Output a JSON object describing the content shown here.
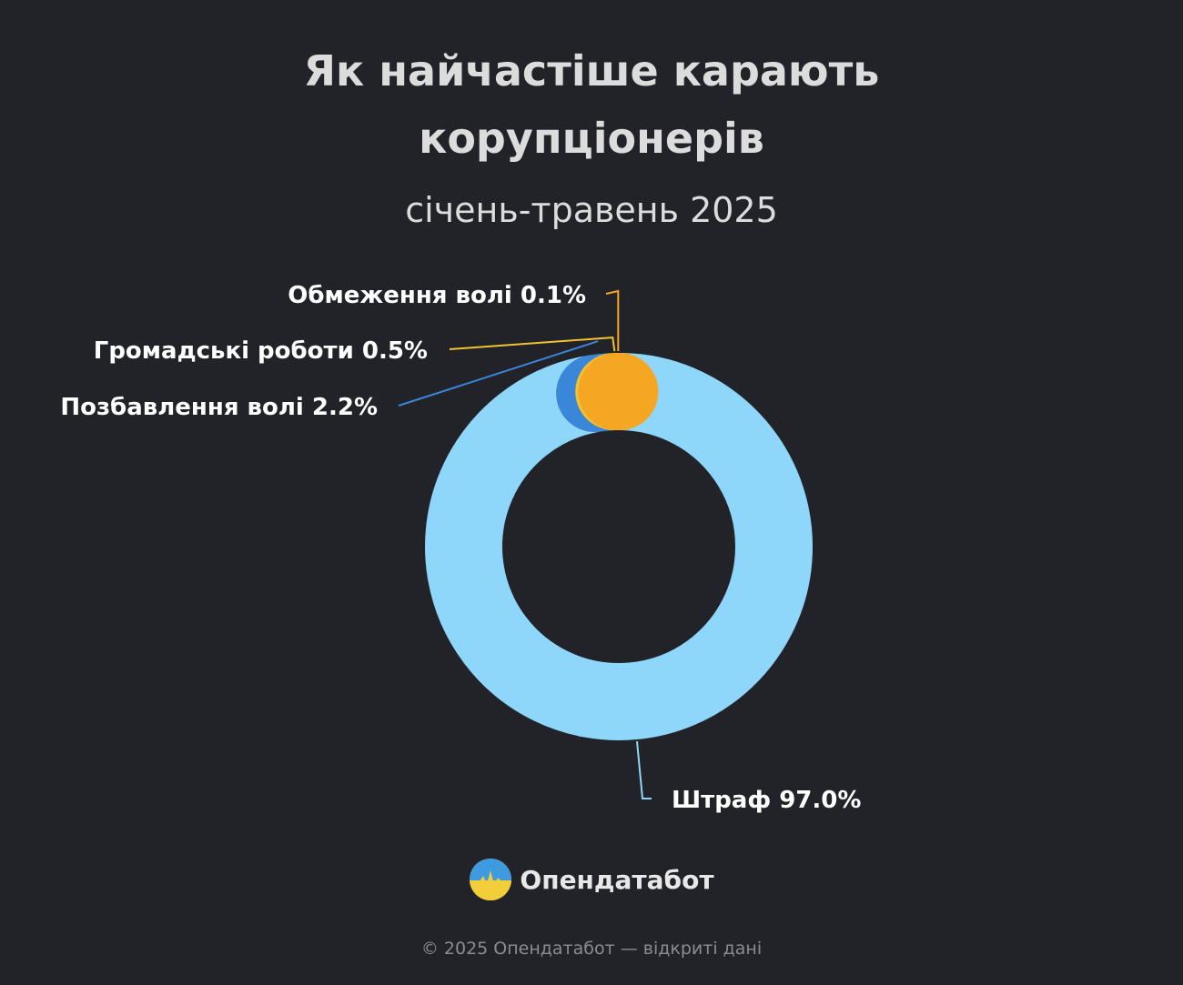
{
  "header": {
    "title_line_1": "Як найчастіше карають",
    "title_line_2": "корупціонерів",
    "subtitle": "січень-травень 2025"
  },
  "chart_data": {
    "type": "pie",
    "subtype": "donut",
    "slices": [
      {
        "label": "Штраф",
        "value": 97.0,
        "display": "Штраф 97.0%",
        "color": "#8fd6fb"
      },
      {
        "label": "Позбавлення волі",
        "value": 2.2,
        "display": "Позбавлення волі 2.2%",
        "color": "#3a86d8"
      },
      {
        "label": "Громадські роботи",
        "value": 0.5,
        "display": "Громадські роботи 0.5%",
        "color": "#f2c230"
      },
      {
        "label": "Обмеження волі",
        "value": 0.1,
        "display": "Обмеження волі 0.1%",
        "color": "#f5a623"
      }
    ]
  },
  "brand": {
    "name": "Опендатабот",
    "logo_icon": "opendatabot-logo-icon"
  },
  "footer": {
    "text": "© 2025 Опендатабот — відкриті дані"
  }
}
